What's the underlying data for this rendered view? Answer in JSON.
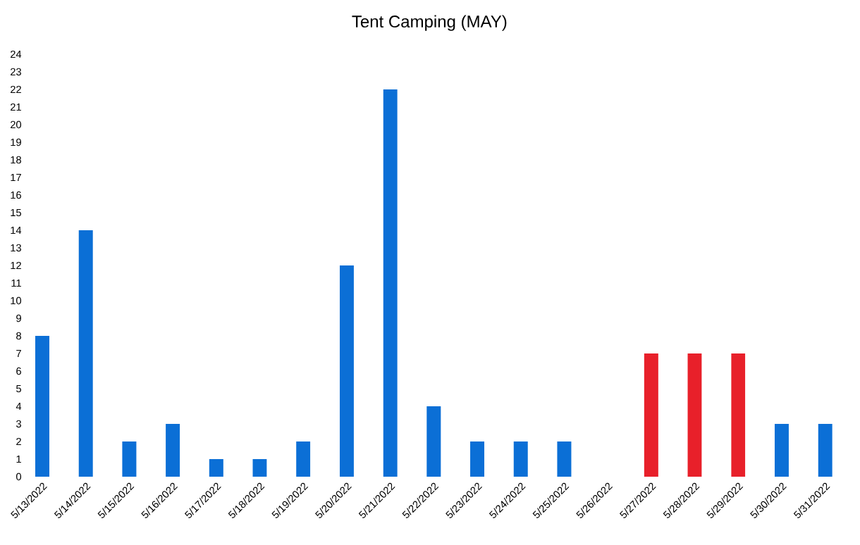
{
  "chart_data": {
    "type": "bar",
    "title": "Tent Camping (MAY)",
    "categories": [
      "5/13/2022",
      "5/14/2022",
      "5/15/2022",
      "5/16/2022",
      "5/17/2022",
      "5/18/2022",
      "5/19/2022",
      "5/20/2022",
      "5/21/2022",
      "5/22/2022",
      "5/23/2022",
      "5/24/2022",
      "5/25/2022",
      "5/26/2022",
      "5/27/2022",
      "5/28/2022",
      "5/29/2022",
      "5/30/2022",
      "5/31/2022"
    ],
    "values": [
      8,
      14,
      2,
      3,
      1,
      1,
      2,
      12,
      22,
      4,
      2,
      2,
      2,
      0,
      7,
      7,
      7,
      3,
      3
    ],
    "colors": [
      "#0b6fd6",
      "#0b6fd6",
      "#0b6fd6",
      "#0b6fd6",
      "#0b6fd6",
      "#0b6fd6",
      "#0b6fd6",
      "#0b6fd6",
      "#0b6fd6",
      "#0b6fd6",
      "#0b6fd6",
      "#0b6fd6",
      "#0b6fd6",
      "#0b6fd6",
      "#e8202a",
      "#e8202a",
      "#e8202a",
      "#0b6fd6",
      "#0b6fd6"
    ],
    "ylim": [
      0,
      24
    ],
    "yticks": [
      0,
      1,
      2,
      3,
      4,
      5,
      6,
      7,
      8,
      9,
      10,
      11,
      12,
      13,
      14,
      15,
      16,
      17,
      18,
      19,
      20,
      21,
      22,
      23,
      24
    ],
    "grid": false
  }
}
